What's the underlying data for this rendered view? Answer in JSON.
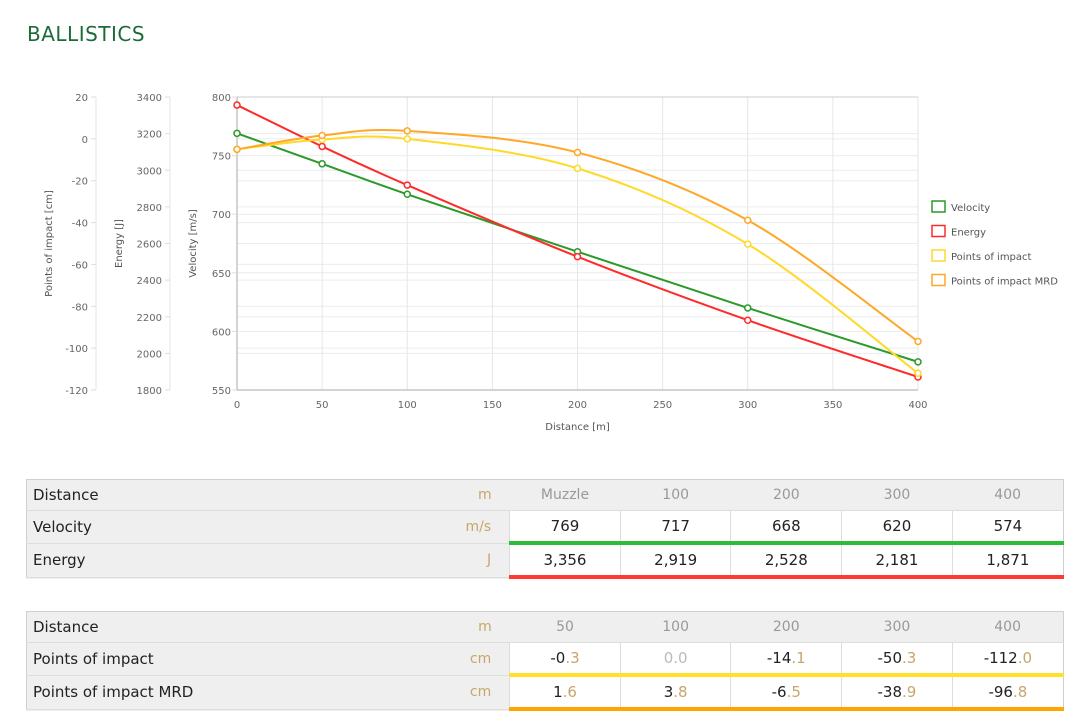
{
  "title": "BALLISTICS",
  "chart_data": {
    "type": "line",
    "x": [
      0,
      50,
      100,
      200,
      300,
      400
    ],
    "xlabel": "Distance [m]",
    "xlim": [
      0,
      400
    ],
    "xticks": [
      0,
      50,
      100,
      150,
      200,
      250,
      300,
      350,
      400
    ],
    "grid": true,
    "legend_position": "right",
    "axes": [
      {
        "id": "poi",
        "label": "Points of impact [cm]",
        "ylim": [
          -120,
          20
        ],
        "ticks": [
          20,
          0,
          -20,
          -40,
          -60,
          -80,
          -100,
          -120
        ]
      },
      {
        "id": "energy",
        "label": "Energy [J]",
        "ylim": [
          1800,
          3400
        ],
        "ticks": [
          3400,
          3200,
          3000,
          2800,
          2600,
          2400,
          2200,
          2000,
          1800
        ]
      },
      {
        "id": "velocity",
        "label": "Velocity [m/s]",
        "ylim": [
          550,
          800
        ],
        "ticks": [
          800,
          750,
          700,
          650,
          600,
          550
        ]
      }
    ],
    "series": [
      {
        "name": "Velocity",
        "axis": "velocity",
        "color": "#2a9a2a",
        "values": [
          769,
          743,
          717,
          668,
          620,
          574
        ]
      },
      {
        "name": "Energy",
        "axis": "energy",
        "color": "#ff2a2a",
        "values": [
          3356,
          3130,
          2919,
          2528,
          2181,
          1871
        ]
      },
      {
        "name": "Points of impact",
        "axis": "poi",
        "color": "#ffd92a",
        "values": [
          -5,
          -0.3,
          0.0,
          -14.1,
          -50.3,
          -112.0
        ]
      },
      {
        "name": "Points of impact MRD",
        "axis": "poi",
        "color": "#ffa726",
        "values": [
          -5,
          1.6,
          3.8,
          -6.5,
          -38.9,
          -96.8
        ]
      }
    ]
  },
  "table1": {
    "rows": [
      {
        "label": "Distance",
        "unit": "m",
        "values": [
          "Muzzle",
          "100",
          "200",
          "300",
          "400"
        ]
      },
      {
        "label": "Velocity",
        "unit": "m/s",
        "values": [
          "769",
          "717",
          "668",
          "620",
          "574"
        ],
        "color": "#2dbb3a"
      },
      {
        "label": "Energy",
        "unit": "J",
        "values": [
          "3,356",
          "2,919",
          "2,528",
          "2,181",
          "1,871"
        ],
        "color": "#ff3a30"
      }
    ]
  },
  "table2": {
    "rows": [
      {
        "label": "Distance",
        "unit": "m",
        "values": [
          "50",
          "100",
          "200",
          "300",
          "400"
        ]
      },
      {
        "label": "Points of impact",
        "unit": "cm",
        "values": [
          "-0.3",
          "0.0",
          "-14.1",
          "-50.3",
          "-112.0"
        ],
        "color": "#ffe02a"
      },
      {
        "label": "Points of impact MRD",
        "unit": "cm",
        "values": [
          "1.6",
          "3.8",
          "-6.5",
          "-38.9",
          "-96.8"
        ],
        "color": "#ffa500"
      }
    ]
  }
}
